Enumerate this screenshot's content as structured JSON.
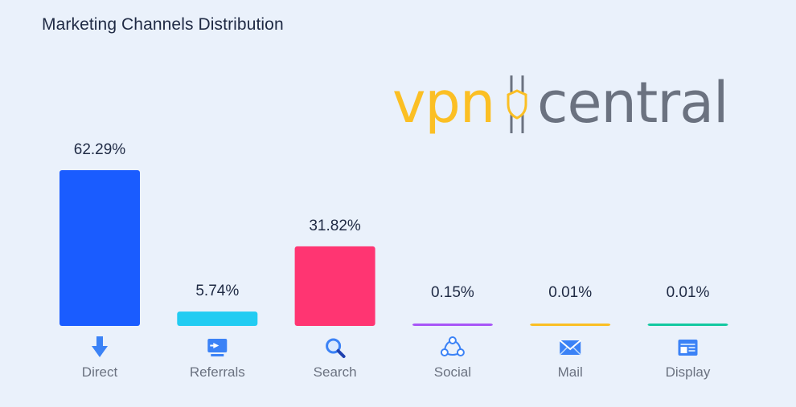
{
  "header": {
    "title": "Marketing Channels Distribution"
  },
  "watermark": {
    "part1": "vpn",
    "part2": "central",
    "color_primary": "#fbbf24",
    "color_secondary": "#6b7280"
  },
  "chart_data": {
    "type": "bar",
    "title": "Marketing Channels Distribution",
    "categories": [
      "Direct",
      "Referrals",
      "Search",
      "Social",
      "Mail",
      "Display"
    ],
    "values": [
      62.29,
      5.74,
      31.82,
      0.15,
      0.01,
      0.01
    ],
    "value_labels": [
      "62.29%",
      "5.74%",
      "31.82%",
      "0.15%",
      "0.01%",
      "0.01%"
    ],
    "icons": [
      "arrow-down-icon",
      "referral-icon",
      "search-icon",
      "social-icon",
      "mail-icon",
      "display-icon"
    ],
    "colors": [
      "#1a5cff",
      "#22ccf2",
      "#ff3572",
      "#a855f7",
      "#fbbf24",
      "#14c8a0"
    ],
    "ylim": [
      0,
      62.29
    ],
    "xlabel": "",
    "ylabel": "",
    "grid": false,
    "legend": "none"
  }
}
